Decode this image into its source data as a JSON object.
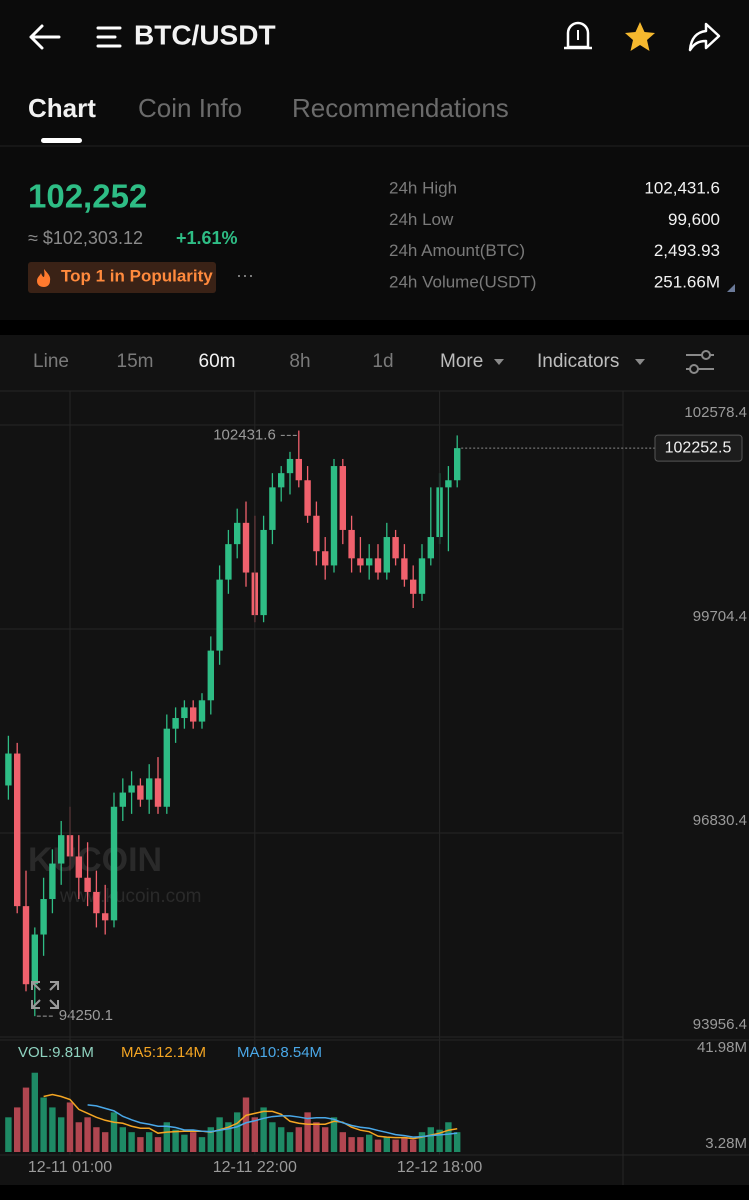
{
  "header": {
    "title": "BTC/USDT"
  },
  "tabs": [
    "Chart",
    "Coin Info",
    "Recommendations"
  ],
  "ticker": {
    "price": "102,252",
    "usd_price": "≈ $102,303.12",
    "change": "+1.61%",
    "badge": "Top 1 in Popularity",
    "more": "···"
  },
  "stats": [
    {
      "label": "24h High",
      "value": "102,431.6"
    },
    {
      "label": "24h Low",
      "value": "99,600"
    },
    {
      "label": "24h Amount(BTC)",
      "value": "2,493.93"
    },
    {
      "label": "24h Volume(USDT)",
      "value": "251.66M"
    }
  ],
  "toolbar": [
    "Line",
    "15m",
    "60m",
    "8h",
    "1d",
    "More",
    "Indicators"
  ],
  "watermark": {
    "logo": "KUCOIN",
    "url": "www.kucoin.com"
  },
  "chart_data": [
    {
      "type": "candlestick",
      "up_color": "#2ebd85",
      "down_color": "#f0616d",
      "open": [
        97500,
        97950,
        95800,
        94700,
        95400,
        95900,
        96400,
        96800,
        96500,
        96200,
        96000,
        95700,
        95600,
        97200,
        97400,
        97500,
        97300,
        97600,
        97200,
        98300,
        98450,
        98600,
        98400,
        98700,
        99400,
        100400,
        100900,
        101200,
        100500,
        99900,
        101100,
        101700,
        101900,
        102100,
        101800,
        101300,
        100800,
        100600,
        102000,
        101100,
        100700,
        100600,
        100700,
        100500,
        101000,
        100700,
        100400,
        100200,
        100700,
        101000,
        101700,
        101800
      ],
      "high": [
        98200,
        98100,
        96300,
        95500,
        96200,
        96600,
        97000,
        97200,
        96800,
        96700,
        96300,
        96100,
        97400,
        97600,
        97700,
        97600,
        97800,
        97900,
        98500,
        98600,
        98700,
        98700,
        98800,
        99600,
        100600,
        101100,
        101400,
        101500,
        101300,
        101300,
        101900,
        102000,
        102200,
        102500,
        102000,
        101500,
        101000,
        102100,
        102100,
        101300,
        101000,
        100900,
        100900,
        101200,
        101100,
        100900,
        100600,
        100900,
        101700,
        101900,
        102000,
        102431.6
      ],
      "low": [
        97300,
        95700,
        94600,
        94250.1,
        95100,
        95700,
        96100,
        96300,
        95900,
        95800,
        95500,
        95400,
        95500,
        97000,
        97100,
        97200,
        97100,
        97100,
        97100,
        98100,
        98300,
        98300,
        98300,
        98500,
        99200,
        100200,
        100700,
        100300,
        99800,
        99800,
        100900,
        101500,
        101600,
        101700,
        101200,
        100600,
        100400,
        100500,
        100900,
        100500,
        100500,
        100400,
        100400,
        100400,
        100600,
        100300,
        100000,
        100100,
        100600,
        100900,
        100800,
        101700
      ],
      "close": [
        97950,
        95800,
        94700,
        95400,
        95900,
        96400,
        96800,
        96500,
        96200,
        96000,
        95700,
        95600,
        97200,
        97400,
        97500,
        97300,
        97600,
        97200,
        98300,
        98450,
        98600,
        98400,
        98700,
        99400,
        100400,
        100900,
        101200,
        100500,
        99900,
        101100,
        101700,
        101900,
        102100,
        101800,
        101300,
        100800,
        100600,
        102000,
        101100,
        100700,
        100600,
        100700,
        100500,
        101000,
        100700,
        100400,
        100200,
        100700,
        101000,
        101700,
        101800,
        102252.5
      ],
      "ylim": [
        93956.4,
        102578.4
      ],
      "yticks": [
        93956.4,
        96830.4,
        99704.4,
        102578.4
      ],
      "grid": true,
      "high_marker": 102431.6,
      "low_marker": 94250.1,
      "last_price": 102252.5
    },
    {
      "type": "bar",
      "categories": [
        null,
        null,
        null,
        null,
        null,
        null,
        null,
        "12-11 01:00",
        null,
        null,
        null,
        null,
        null,
        null,
        null,
        null,
        null,
        null,
        null,
        null,
        null,
        null,
        null,
        null,
        null,
        null,
        null,
        null,
        "12-11 22:00",
        null,
        null,
        null,
        null,
        null,
        null,
        null,
        null,
        null,
        null,
        null,
        null,
        null,
        null,
        null,
        null,
        null,
        null,
        null,
        null,
        "12-12 18:00",
        null,
        null
      ],
      "series": [
        {
          "name": "VOL:9.81M",
          "color": "#8fd3c0",
          "values": [
            14,
            18,
            26,
            32,
            22,
            18,
            14,
            20,
            12,
            14,
            10,
            8,
            16,
            10,
            8,
            6,
            8,
            6,
            12,
            9,
            7,
            8,
            6,
            10,
            14,
            12,
            16,
            22,
            14,
            18,
            12,
            10,
            8,
            10,
            16,
            12,
            10,
            14,
            8,
            6,
            6,
            7,
            5,
            6,
            5,
            6,
            5,
            8,
            10,
            9,
            12,
            8
          ]
        },
        {
          "name": "MA5:12.14M",
          "color": "#f5a623",
          "values": [
            null,
            null,
            null,
            null,
            22.4,
            23.2,
            22.4,
            21.2,
            17.2,
            15.6,
            14,
            12.8,
            12,
            11.6,
            10.4,
            9.6,
            9.6,
            7.6,
            8,
            8.2,
            8.4,
            8.4,
            8.4,
            8,
            9,
            10,
            11.6,
            14.8,
            15.6,
            16.4,
            16.4,
            15.2,
            12.4,
            11.6,
            11.2,
            11.2,
            11.2,
            12.4,
            12,
            10,
            8.8,
            8.2,
            6.4,
            6,
            5.8,
            5.8,
            5.4,
            6,
            6.8,
            7.6,
            8.8,
            9.4
          ]
        },
        {
          "name": "MA10:8.54M",
          "color": "#4aa8e8",
          "values": [
            null,
            null,
            null,
            null,
            null,
            null,
            null,
            null,
            null,
            19,
            18.6,
            17.6,
            16.6,
            14.4,
            13,
            11.8,
            11.2,
            10.4,
            10.4,
            9.9,
            8.9,
            8.9,
            8.4,
            8.2,
            8.8,
            9.4,
            10.2,
            11.8,
            12.6,
            13.6,
            14.3,
            14.6,
            14.6,
            14.1,
            13.5,
            13.8,
            13.8,
            13.2,
            11.8,
            10.7,
            10,
            9.6,
            8.7,
            7.9,
            7,
            6.6,
            6,
            6.2,
            6.6,
            6.9,
            7.2,
            7.6
          ]
        }
      ],
      "ylim": [
        0,
        41.98
      ],
      "yticks": [
        {
          "value": 41.98,
          "label": "41.98M"
        },
        {
          "value": 3.28,
          "label": "3.28M"
        }
      ],
      "grid": false
    }
  ]
}
